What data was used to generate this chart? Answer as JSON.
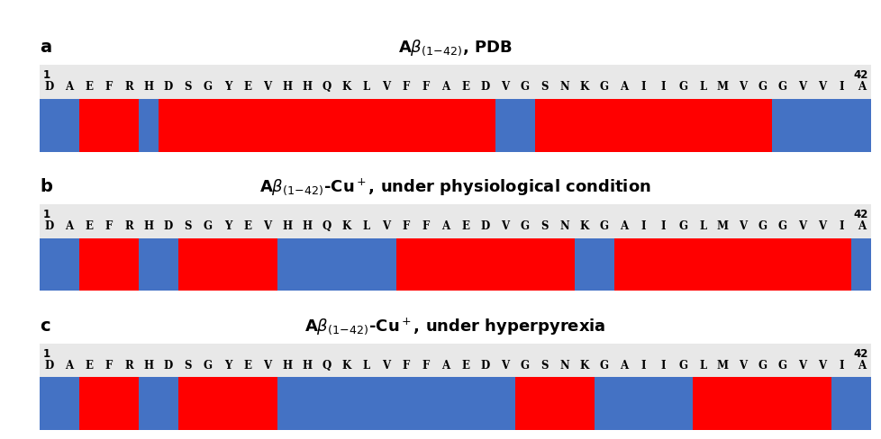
{
  "amino_acids": [
    "D",
    "A",
    "E",
    "F",
    "R",
    "H",
    "D",
    "S",
    "G",
    "Y",
    "E",
    "V",
    "H",
    "H",
    "Q",
    "K",
    "L",
    "V",
    "F",
    "F",
    "A",
    "E",
    "D",
    "V",
    "G",
    "S",
    "N",
    "K",
    "G",
    "A",
    "I",
    "I",
    "G",
    "L",
    "M",
    "V",
    "G",
    "G",
    "V",
    "V",
    "I",
    "A"
  ],
  "n_residues": 42,
  "red_color": "#FF0000",
  "blue_color": "#4472C4",
  "bg_color": "#FFFFFF",
  "sequence_bg": "#E8E8E8",
  "panels": [
    {
      "label": "a",
      "title": "A$\\beta$$_{(1\\!-\\!42)}$, PDB",
      "segments": [
        {
          "start": 1,
          "end": 2,
          "color": "blue"
        },
        {
          "start": 3,
          "end": 5,
          "color": "red"
        },
        {
          "start": 6,
          "end": 6,
          "color": "blue"
        },
        {
          "start": 7,
          "end": 23,
          "color": "red"
        },
        {
          "start": 24,
          "end": 25,
          "color": "blue"
        },
        {
          "start": 26,
          "end": 37,
          "color": "red"
        },
        {
          "start": 38,
          "end": 42,
          "color": "blue"
        }
      ]
    },
    {
      "label": "b",
      "title": "A$\\beta$$_{(1\\!-\\!42)}$-Cu$^+$, under physiological condition",
      "segments": [
        {
          "start": 1,
          "end": 2,
          "color": "blue"
        },
        {
          "start": 3,
          "end": 5,
          "color": "red"
        },
        {
          "start": 6,
          "end": 7,
          "color": "blue"
        },
        {
          "start": 8,
          "end": 12,
          "color": "red"
        },
        {
          "start": 13,
          "end": 18,
          "color": "blue"
        },
        {
          "start": 19,
          "end": 27,
          "color": "red"
        },
        {
          "start": 28,
          "end": 29,
          "color": "blue"
        },
        {
          "start": 30,
          "end": 41,
          "color": "red"
        },
        {
          "start": 42,
          "end": 42,
          "color": "blue"
        }
      ]
    },
    {
      "label": "c",
      "title": "A$\\beta$$_{(1\\!-\\!42)}$-Cu$^+$, under hyperpyrexia",
      "segments": [
        {
          "start": 1,
          "end": 2,
          "color": "blue"
        },
        {
          "start": 3,
          "end": 5,
          "color": "red"
        },
        {
          "start": 6,
          "end": 7,
          "color": "blue"
        },
        {
          "start": 8,
          "end": 12,
          "color": "red"
        },
        {
          "start": 13,
          "end": 24,
          "color": "blue"
        },
        {
          "start": 25,
          "end": 28,
          "color": "red"
        },
        {
          "start": 29,
          "end": 33,
          "color": "blue"
        },
        {
          "start": 34,
          "end": 40,
          "color": "red"
        },
        {
          "start": 41,
          "end": 42,
          "color": "blue"
        }
      ]
    }
  ],
  "title_fontsize": 13,
  "label_fontsize": 14,
  "seq_fontsize": 8.5,
  "num_fontsize": 8.5
}
